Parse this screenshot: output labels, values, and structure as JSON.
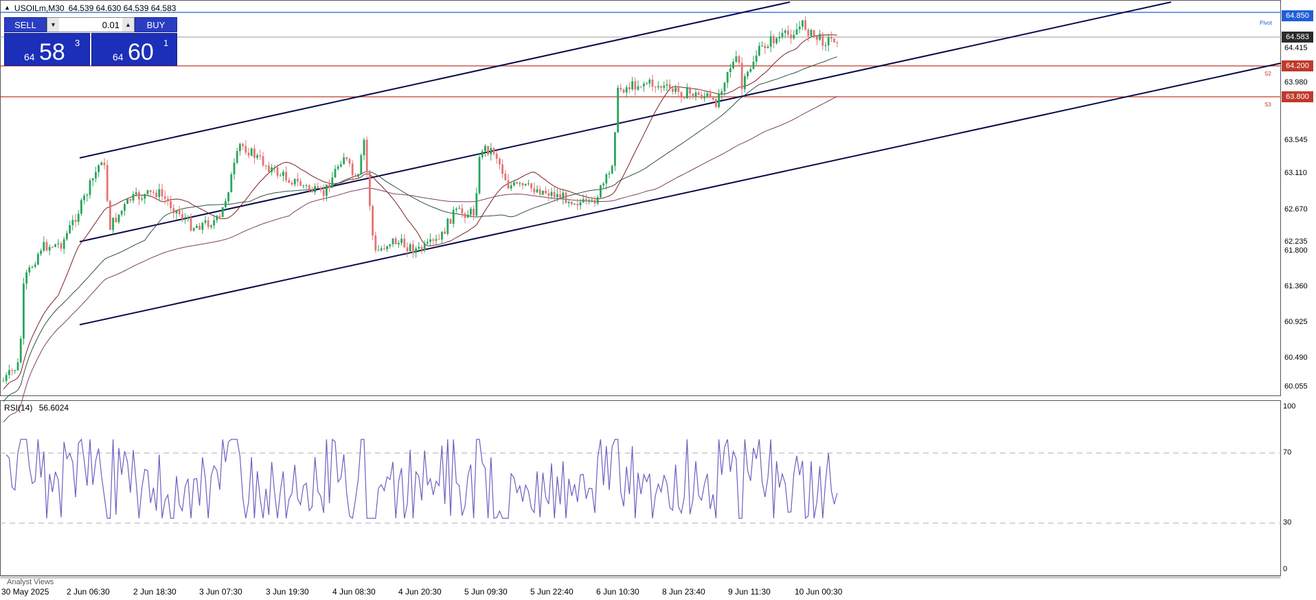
{
  "header": {
    "symbol_tf": "USOILm,M30",
    "ohlc": "64.539 64.630 64.539 64.583"
  },
  "trade_panel": {
    "sell_label": "SELL",
    "buy_label": "BUY",
    "lot_value": "0.01",
    "sell_price": {
      "small": "64",
      "big": "58",
      "sup": "3"
    },
    "buy_price": {
      "small": "64",
      "big": "60",
      "sup": "1"
    }
  },
  "price_axis": {
    "ticks": [
      "64.415",
      "63.980",
      "63.545",
      "63.110",
      "62.670",
      "62.235",
      "61.800",
      "61.360",
      "60.925",
      "60.490",
      "60.055"
    ],
    "current_price": "64.583",
    "line_levels": [
      {
        "label": "64.850",
        "name": "Pivot",
        "color": "#1e5fd6"
      },
      {
        "label": "64.200",
        "name": "S2",
        "color": "#c0392b"
      },
      {
        "label": "63.800",
        "name": "S3",
        "color": "#c0392b"
      }
    ]
  },
  "time_axis": {
    "ticks": [
      "30 May 2025",
      "2 Jun 06:30",
      "2 Jun 18:30",
      "3 Jun 07:30",
      "3 Jun 19:30",
      "4 Jun 08:30",
      "4 Jun 20:30",
      "5 Jun 09:30",
      "5 Jun 22:40",
      "6 Jun 10:30",
      "8 Jun 23:40",
      "9 Jun 11:30",
      "10 Jun 00:30"
    ]
  },
  "rsi": {
    "label": "RSI(14)",
    "value": "56.6024",
    "ticks": [
      "100",
      "70",
      "30",
      "0"
    ],
    "color": "#6b5fbf"
  },
  "colors": {
    "bull": "#26a65b",
    "bear": "#e57373",
    "channel": "#0a0a4a",
    "ma_fast": "#7a1f1f",
    "ma_mid": "#2f4f3f",
    "ma_slow": "#7a3f6a"
  },
  "footer": {
    "tab_label": "Analyst Views"
  }
}
